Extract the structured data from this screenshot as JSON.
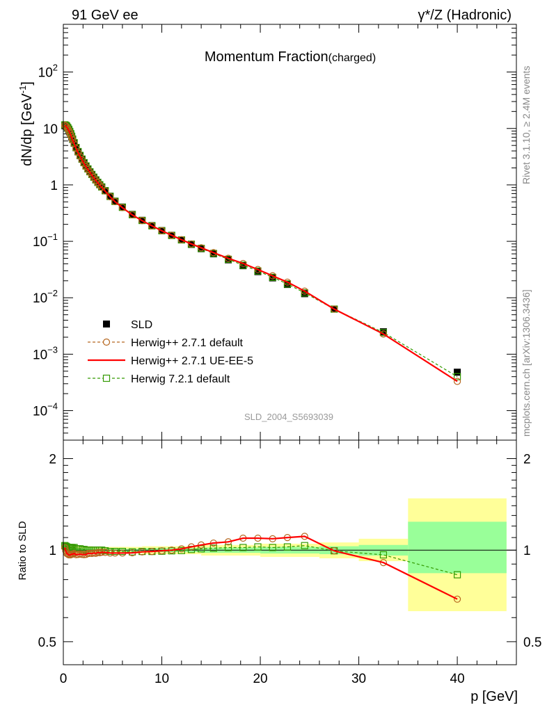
{
  "header": {
    "left": "91 GeV ee",
    "right": "γ*/Z (Hadronic)"
  },
  "side_labels": {
    "rivet": "Rivet 3.1.10, ≥ 2.4M events",
    "mcplots": "mcplots.cern.ch [arXiv:1306.3436]"
  },
  "chart_data": [
    {
      "type": "line",
      "title": "Momentum Fraction",
      "title_suffix": "(charged)",
      "watermark": "SLD_2004_S5693039",
      "ylabel": "dN/dp [GeV",
      "ylabel_sup": "-1",
      "ylabel_end": "]",
      "yscale": "log",
      "xlim": [
        0,
        46
      ],
      "ylim": [
        3e-05,
        700
      ],
      "y_ticks": [
        {
          "value": 0.0001,
          "base": "10",
          "exp": "−4"
        },
        {
          "value": 0.001,
          "base": "10",
          "exp": "−3"
        },
        {
          "value": 0.01,
          "base": "10",
          "exp": "−2"
        },
        {
          "value": 0.1,
          "base": "10",
          "exp": "−1"
        },
        {
          "value": 1,
          "base": "1",
          "exp": ""
        },
        {
          "value": 10,
          "base": "10",
          "exp": ""
        },
        {
          "value": 100,
          "base": "10",
          "exp": "2"
        }
      ],
      "legend_position": "bottom-left",
      "x": [
        0.15,
        0.25,
        0.35,
        0.45,
        0.55,
        0.65,
        0.75,
        0.85,
        0.95,
        1.1,
        1.3,
        1.5,
        1.7,
        1.9,
        2.1,
        2.3,
        2.5,
        2.7,
        2.9,
        3.1,
        3.3,
        3.5,
        3.7,
        3.9,
        4.25,
        4.75,
        5.25,
        6.0,
        7.0,
        8.0,
        9.0,
        10.0,
        11.0,
        12.0,
        13.0,
        14.0,
        15.25,
        16.75,
        18.25,
        19.75,
        21.25,
        22.75,
        24.5,
        27.5,
        32.5,
        40.0
      ],
      "series": [
        {
          "name": "SLD",
          "style": "data",
          "color": "#000000",
          "values": [
            11.2,
            11.1,
            10.8,
            10.2,
            9.5,
            8.7,
            7.9,
            7.1,
            6.4,
            5.5,
            4.55,
            3.85,
            3.3,
            2.85,
            2.47,
            2.17,
            1.92,
            1.71,
            1.53,
            1.37,
            1.23,
            1.11,
            1.01,
            0.92,
            0.79,
            0.63,
            0.515,
            0.405,
            0.3,
            0.236,
            0.19,
            0.155,
            0.128,
            0.106,
            0.088,
            0.074,
            0.06,
            0.047,
            0.037,
            0.029,
            0.0225,
            0.0172,
            0.0118,
            0.0063,
            0.0025,
            0.00048
          ]
        },
        {
          "name": "Herwig++ 2.7.1 default",
          "style": "dashed-circle",
          "color": "#b5651d",
          "values": [
            11.4,
            11.0,
            10.5,
            9.9,
            9.2,
            8.4,
            7.6,
            6.9,
            6.2,
            5.35,
            4.4,
            3.73,
            3.2,
            2.76,
            2.39,
            2.1,
            1.87,
            1.67,
            1.49,
            1.34,
            1.2,
            1.09,
            0.99,
            0.905,
            0.777,
            0.616,
            0.504,
            0.396,
            0.294,
            0.233,
            0.188,
            0.154,
            0.128,
            0.107,
            0.09,
            0.077,
            0.063,
            0.05,
            0.0405,
            0.0317,
            0.0245,
            0.0189,
            0.0131,
            0.0063,
            0.00228,
            0.00033
          ]
        },
        {
          "name": "Herwig++ 2.7.1 UE-EE-5",
          "style": "solid",
          "color": "#ff0000",
          "values": [
            11.4,
            11.0,
            10.5,
            9.9,
            9.2,
            8.4,
            7.6,
            6.9,
            6.2,
            5.35,
            4.4,
            3.73,
            3.2,
            2.76,
            2.39,
            2.1,
            1.87,
            1.67,
            1.49,
            1.34,
            1.2,
            1.09,
            0.99,
            0.905,
            0.777,
            0.616,
            0.504,
            0.396,
            0.294,
            0.233,
            0.188,
            0.154,
            0.128,
            0.107,
            0.09,
            0.077,
            0.063,
            0.05,
            0.0405,
            0.0317,
            0.0245,
            0.0189,
            0.0131,
            0.0063,
            0.00228,
            0.00033
          ]
        },
        {
          "name": "Herwig 7.2.1 default",
          "style": "dashed-square",
          "color": "#339900",
          "values": [
            11.6,
            11.4,
            11.0,
            10.4,
            9.7,
            8.9,
            8.1,
            7.3,
            6.5,
            5.6,
            4.6,
            3.9,
            3.33,
            2.87,
            2.48,
            2.17,
            1.92,
            1.71,
            1.53,
            1.37,
            1.23,
            1.11,
            1.01,
            0.92,
            0.787,
            0.624,
            0.51,
            0.4,
            0.296,
            0.234,
            0.188,
            0.154,
            0.127,
            0.106,
            0.089,
            0.075,
            0.061,
            0.048,
            0.0378,
            0.0298,
            0.023,
            0.0176,
            0.0122,
            0.0063,
            0.00242,
            0.0004
          ]
        }
      ]
    },
    {
      "type": "line",
      "ylabel": "Ratio to SLD",
      "xlabel": "p [GeV]",
      "xlim": [
        0,
        46
      ],
      "ylim": [
        0.42,
        2.3
      ],
      "x_ticks": [
        0,
        10,
        20,
        30,
        40
      ],
      "y_ticks": [
        0.5,
        1,
        2
      ],
      "reference_line": 1,
      "bands": [
        {
          "name": "stat",
          "color": "#99ff99"
        },
        {
          "name": "total",
          "color": "#ffff99"
        }
      ],
      "band_bins": [
        {
          "x": [
            0,
            3
          ],
          "stat": [
            0.985,
            1.015
          ],
          "total": [
            0.97,
            1.03
          ]
        },
        {
          "x": [
            3,
            8
          ],
          "stat": [
            0.99,
            1.01
          ],
          "total": [
            0.975,
            1.025
          ]
        },
        {
          "x": [
            8,
            14
          ],
          "stat": [
            0.985,
            1.015
          ],
          "total": [
            0.97,
            1.03
          ]
        },
        {
          "x": [
            14,
            20
          ],
          "stat": [
            0.98,
            1.02
          ],
          "total": [
            0.96,
            1.04
          ]
        },
        {
          "x": [
            20,
            26
          ],
          "stat": [
            0.975,
            1.025
          ],
          "total": [
            0.95,
            1.05
          ]
        },
        {
          "x": [
            26,
            30
          ],
          "stat": [
            0.97,
            1.03
          ],
          "total": [
            0.94,
            1.06
          ]
        },
        {
          "x": [
            30,
            35
          ],
          "stat": [
            0.96,
            1.04
          ],
          "total": [
            0.92,
            1.09
          ]
        },
        {
          "x": [
            35,
            45
          ],
          "stat": [
            0.84,
            1.24
          ],
          "total": [
            0.63,
            1.48
          ]
        }
      ],
      "x": [
        0.15,
        0.25,
        0.35,
        0.45,
        0.55,
        0.65,
        0.75,
        0.85,
        0.95,
        1.1,
        1.3,
        1.5,
        1.7,
        1.9,
        2.1,
        2.3,
        2.5,
        2.7,
        2.9,
        3.1,
        3.3,
        3.5,
        3.7,
        3.9,
        4.25,
        4.75,
        5.25,
        6.0,
        7.0,
        8.0,
        9.0,
        10.0,
        11.0,
        12.0,
        13.0,
        14.0,
        15.25,
        16.75,
        18.25,
        19.75,
        21.25,
        22.75,
        24.5,
        27.5,
        32.5,
        40.0
      ],
      "series": [
        {
          "name": "Herwig++ 2.7.1 default",
          "style": "dashed-circle",
          "color": "#b5651d",
          "values": [
            1.02,
            0.995,
            0.975,
            0.97,
            0.965,
            0.965,
            0.965,
            0.97,
            0.97,
            0.975,
            0.967,
            0.968,
            0.97,
            0.968,
            0.967,
            0.968,
            0.975,
            0.976,
            0.975,
            0.978,
            0.976,
            0.982,
            0.981,
            0.984,
            0.983,
            0.978,
            0.978,
            0.978,
            0.98,
            0.987,
            0.99,
            0.995,
            1.0,
            1.01,
            1.025,
            1.04,
            1.055,
            1.065,
            1.095,
            1.095,
            1.09,
            1.1,
            1.11,
            0.995,
            0.91,
            0.69
          ]
        },
        {
          "name": "Herwig++ 2.7.1 UE-EE-5",
          "style": "solid",
          "color": "#ff0000",
          "values": [
            1.02,
            0.995,
            0.975,
            0.97,
            0.965,
            0.965,
            0.965,
            0.97,
            0.97,
            0.975,
            0.967,
            0.968,
            0.97,
            0.968,
            0.967,
            0.968,
            0.975,
            0.976,
            0.975,
            0.978,
            0.976,
            0.982,
            0.981,
            0.984,
            0.983,
            0.978,
            0.978,
            0.978,
            0.98,
            0.987,
            0.99,
            0.995,
            1.0,
            1.01,
            1.025,
            1.04,
            1.055,
            1.065,
            1.095,
            1.095,
            1.09,
            1.1,
            1.11,
            0.995,
            0.91,
            0.69
          ]
        },
        {
          "name": "Herwig 7.2.1 default",
          "style": "dashed-square",
          "color": "#339900",
          "values": [
            1.035,
            1.03,
            1.025,
            1.02,
            1.02,
            1.02,
            1.02,
            1.02,
            1.015,
            1.02,
            1.01,
            1.01,
            1.01,
            1.005,
            1.005,
            1.0,
            1.0,
            1.0,
            1.0,
            1.0,
            1.0,
            1.0,
            1.0,
            1.0,
            0.995,
            0.99,
            0.99,
            0.99,
            0.987,
            0.99,
            0.99,
            0.992,
            0.995,
            0.997,
            1.005,
            1.01,
            1.015,
            1.02,
            1.02,
            1.025,
            1.02,
            1.025,
            1.035,
            0.995,
            0.965,
            0.83
          ]
        }
      ]
    }
  ]
}
